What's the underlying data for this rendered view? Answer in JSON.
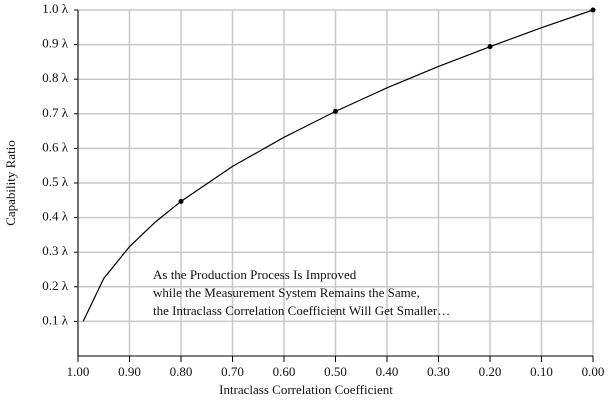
{
  "chart_data": {
    "type": "line",
    "xlabel": "Intraclass Correlation Coefficient",
    "ylabel": "Capability Ratio",
    "annotation": [
      "As the Production Process Is Improved",
      "while the Measurement System Remains the Same,",
      "the Intraclass Correlation Coefficient Will Get Smaller…"
    ],
    "x": [
      0.99,
      0.95,
      0.9,
      0.85,
      0.8,
      0.7,
      0.6,
      0.5,
      0.4,
      0.3,
      0.2,
      0.1,
      0.0
    ],
    "values": [
      0.1,
      0.224,
      0.316,
      0.387,
      0.447,
      0.548,
      0.632,
      0.707,
      0.775,
      0.837,
      0.894,
      0.949,
      1.0
    ],
    "color": "#000000",
    "points": {
      "x": [
        0.8,
        0.5,
        0.2,
        0.0
      ],
      "values": [
        0.447,
        0.707,
        0.894,
        1.0
      ]
    },
    "xlim": [
      1.0,
      0.0
    ],
    "xticks": [
      {
        "value": 1.0,
        "label": "1.00"
      },
      {
        "value": 0.9,
        "label": "0.90"
      },
      {
        "value": 0.8,
        "label": "0.80"
      },
      {
        "value": 0.7,
        "label": "0.70"
      },
      {
        "value": 0.6,
        "label": "0.60"
      },
      {
        "value": 0.5,
        "label": "0.50"
      },
      {
        "value": 0.4,
        "label": "0.40"
      },
      {
        "value": 0.3,
        "label": "0.30"
      },
      {
        "value": 0.2,
        "label": "0.20"
      },
      {
        "value": 0.1,
        "label": "0.10"
      },
      {
        "value": 0.0,
        "label": "0.00"
      }
    ],
    "ylim": [
      0,
      1.0
    ],
    "yticks": [
      {
        "value": 0.1,
        "label": "0.1 λ"
      },
      {
        "value": 0.2,
        "label": "0.2 λ"
      },
      {
        "value": 0.3,
        "label": "0.3 λ"
      },
      {
        "value": 0.4,
        "label": "0.4 λ"
      },
      {
        "value": 0.5,
        "label": "0.5 λ"
      },
      {
        "value": 0.6,
        "label": "0.6 λ"
      },
      {
        "value": 0.7,
        "label": "0.7 λ"
      },
      {
        "value": 0.8,
        "label": "0.8 λ"
      },
      {
        "value": 0.9,
        "label": "0.9 λ"
      },
      {
        "value": 1.0,
        "label": "1.0 λ"
      }
    ],
    "grid": true
  }
}
